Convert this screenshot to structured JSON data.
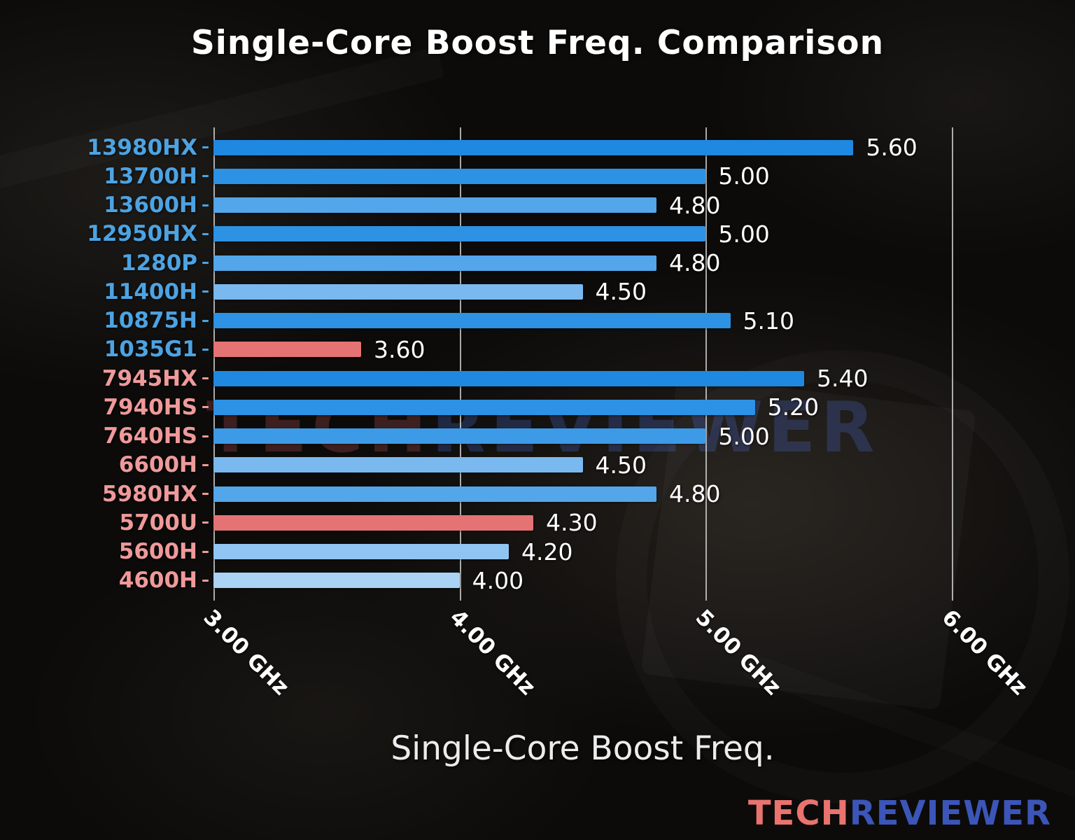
{
  "title": "Single-Core Boost Freq. Comparison",
  "xlabel": "Single-Core Boost Freq.",
  "watermark": {
    "part1": "TECH",
    "part2": "REVIEWER"
  },
  "logo": {
    "part1": "TECH",
    "part2": "REVIEWER"
  },
  "colors": {
    "intel_label": "#4da3e2",
    "amd_label": "#ef9a9a",
    "highlight_bar": "#e57373",
    "gridline": "rgba(232,232,232,0.72)"
  },
  "chart_data": {
    "type": "bar",
    "orientation": "horizontal",
    "title": "Single-Core Boost Freq. Comparison",
    "xlabel": "Single-Core Boost Freq.",
    "ylabel": "",
    "xlim": [
      3.0,
      6.0
    ],
    "grid": true,
    "x_ticks": [
      "3.00 GHz",
      "4.00 GHz",
      "5.00 GHz",
      "6.00 GHz"
    ],
    "x_tick_values": [
      3.0,
      4.0,
      5.0,
      6.0
    ],
    "categories": [
      "13980HX",
      "13700H",
      "13600H",
      "12950HX",
      "1280P",
      "11400H",
      "10875H",
      "1035G1",
      "7945HX",
      "7940HS",
      "7640HS",
      "6600H",
      "5980HX",
      "5700U",
      "5600H",
      "4600H"
    ],
    "values": [
      5.6,
      5.0,
      4.8,
      5.0,
      4.8,
      4.5,
      5.1,
      3.6,
      5.4,
      5.2,
      5.0,
      4.5,
      4.8,
      4.3,
      4.2,
      4.0
    ],
    "value_labels": [
      "5.60",
      "5.00",
      "4.80",
      "5.00",
      "4.80",
      "4.50",
      "5.10",
      "3.60",
      "5.40",
      "5.20",
      "5.00",
      "4.50",
      "4.80",
      "4.30",
      "4.20",
      "4.00"
    ],
    "bar_colors": [
      "#1f88e0",
      "#2d92e3",
      "#53a6ea",
      "#2d92e3",
      "#53a6ea",
      "#79b9ef",
      "#2d92e3",
      "#e57373",
      "#1f88e0",
      "#2d92e3",
      "#3d9ae6",
      "#79b9ef",
      "#53a6ea",
      "#e57373",
      "#90c5f2",
      "#aad2f5"
    ],
    "label_colors": [
      "#4da3e2",
      "#4da3e2",
      "#4da3e2",
      "#4da3e2",
      "#4da3e2",
      "#4da3e2",
      "#4da3e2",
      "#4da3e2",
      "#ef9a9a",
      "#ef9a9a",
      "#ef9a9a",
      "#ef9a9a",
      "#ef9a9a",
      "#ef9a9a",
      "#ef9a9a",
      "#ef9a9a"
    ]
  }
}
